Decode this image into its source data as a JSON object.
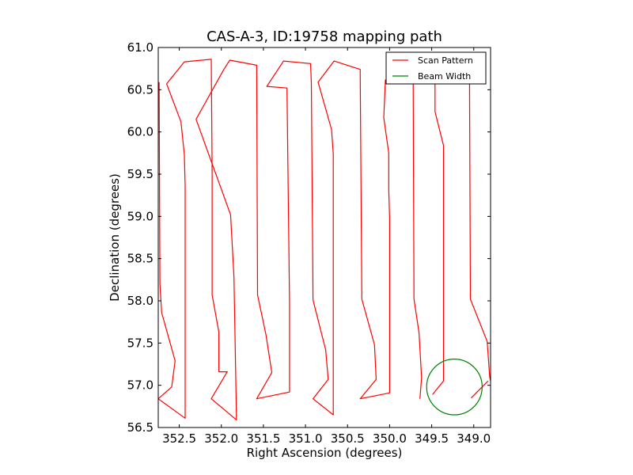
{
  "chart_data": {
    "type": "line",
    "title": "CAS-A-3, ID:19758 mapping path",
    "xlabel": "Right Ascension (degrees)",
    "ylabel": "Declination (degrees)",
    "xlim": [
      352.75,
      348.8
    ],
    "ylim": [
      56.5,
      61.0
    ],
    "x_reversed": true,
    "xticks": [
      352.5,
      352.0,
      351.5,
      351.0,
      350.5,
      350.0,
      349.5,
      349.0
    ],
    "xtick_labels": [
      "352.5",
      "352.0",
      "351.5",
      "351.0",
      "350.5",
      "350.0",
      "349.5",
      "349.0"
    ],
    "yticks": [
      56.5,
      57.0,
      57.5,
      58.0,
      58.5,
      59.0,
      59.5,
      60.0,
      60.5,
      61.0
    ],
    "ytick_labels": [
      "56.5",
      "57.0",
      "57.5",
      "58.0",
      "58.5",
      "59.0",
      "59.5",
      "60.0",
      "60.5",
      "61.0"
    ],
    "legend_position": "top-right",
    "series": [
      {
        "name": "Scan Pattern",
        "color": "#ff0000",
        "points": [
          [
            352.74,
            60.59
          ],
          [
            352.73,
            58.2
          ],
          [
            352.71,
            57.86
          ],
          [
            352.55,
            57.29
          ],
          [
            352.59,
            56.98
          ],
          [
            352.75,
            56.84
          ],
          [
            352.43,
            56.61
          ],
          [
            352.43,
            59.35
          ],
          [
            352.44,
            59.73
          ],
          [
            352.48,
            60.12
          ],
          [
            352.65,
            60.57
          ],
          [
            352.44,
            60.83
          ],
          [
            352.12,
            60.86
          ],
          [
            352.11,
            59.52
          ],
          [
            352.11,
            58.07
          ],
          [
            352.03,
            57.63
          ],
          [
            352.03,
            57.16
          ],
          [
            351.93,
            57.16
          ],
          [
            352.12,
            56.84
          ],
          [
            351.82,
            56.59
          ],
          [
            351.85,
            58.28
          ],
          [
            351.89,
            59.02
          ],
          [
            352.3,
            60.15
          ],
          [
            351.97,
            60.74
          ],
          [
            351.9,
            60.85
          ],
          [
            351.58,
            60.79
          ],
          [
            351.57,
            58.07
          ],
          [
            351.47,
            57.6
          ],
          [
            351.4,
            57.15
          ],
          [
            351.58,
            56.84
          ],
          [
            351.19,
            56.92
          ],
          [
            351.19,
            57.98
          ],
          [
            351.22,
            60.52
          ],
          [
            351.46,
            60.54
          ],
          [
            351.26,
            60.84
          ],
          [
            350.94,
            60.81
          ],
          [
            350.93,
            60.57
          ],
          [
            350.91,
            58.01
          ],
          [
            350.76,
            57.42
          ],
          [
            350.73,
            57.07
          ],
          [
            350.91,
            56.84
          ],
          [
            350.67,
            56.65
          ],
          [
            350.67,
            59.74
          ],
          [
            350.69,
            60.03
          ],
          [
            350.85,
            60.59
          ],
          [
            350.66,
            60.84
          ],
          [
            350.35,
            60.74
          ],
          [
            350.33,
            58.02
          ],
          [
            350.18,
            57.48
          ],
          [
            350.16,
            57.07
          ],
          [
            350.35,
            56.84
          ],
          [
            350.0,
            56.91
          ],
          [
            350.0,
            58.98
          ],
          [
            350.01,
            59.32
          ],
          [
            350.01,
            59.75
          ],
          [
            350.07,
            60.17
          ],
          [
            350.05,
            60.62
          ]
        ]
      },
      {
        "name": "Scan Pattern",
        "color": "#ff0000",
        "points": [
          [
            349.72,
            60.6
          ],
          [
            349.71,
            58.02
          ],
          [
            349.65,
            57.62
          ],
          [
            349.62,
            57.09
          ],
          [
            349.64,
            56.84
          ]
        ]
      },
      {
        "name": "Scan Pattern",
        "color": "#ff0000",
        "points": [
          [
            349.46,
            60.57
          ],
          [
            349.46,
            60.24
          ],
          [
            349.36,
            59.84
          ],
          [
            349.36,
            57.05
          ],
          [
            349.49,
            56.89
          ]
        ]
      },
      {
        "name": "Scan Pattern",
        "color": "#ff0000",
        "points": [
          [
            349.05,
            60.61
          ],
          [
            349.04,
            58.02
          ],
          [
            348.84,
            57.52
          ],
          [
            348.81,
            57.1
          ],
          [
            348.8,
            57.05
          ]
        ]
      },
      {
        "name": "Scan Pattern",
        "color": "#ff0000",
        "points": [
          [
            349.03,
            56.85
          ],
          [
            348.83,
            57.05
          ]
        ]
      },
      {
        "name": "Beam Width",
        "color": "#008000",
        "shape": "circle",
        "center": [
          349.23,
          56.98
        ],
        "radius": 0.33
      }
    ]
  }
}
